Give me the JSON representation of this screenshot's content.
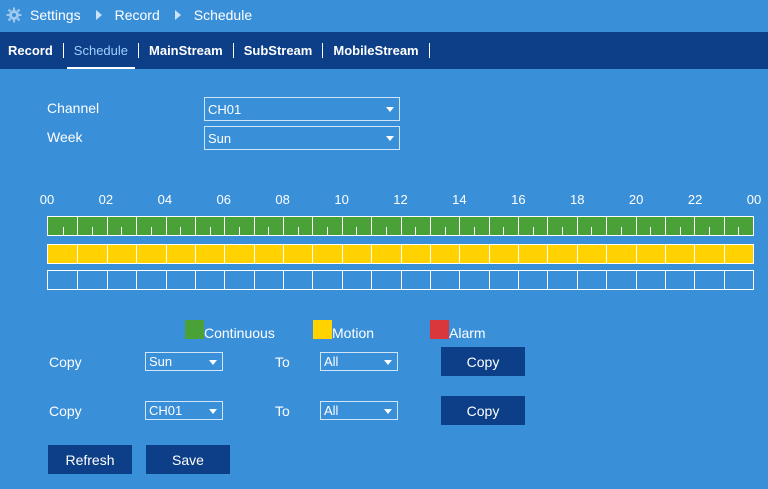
{
  "breadcrumb": {
    "items": [
      "Settings",
      "Record",
      "Schedule"
    ]
  },
  "tabs": [
    "Record",
    "Schedule",
    "MainStream",
    "SubStream",
    "MobileStream"
  ],
  "active_tab": "Schedule",
  "form": {
    "channel_label": "Channel",
    "channel_value": "CH01",
    "week_label": "Week",
    "week_value": "Sun"
  },
  "timeline": {
    "hour_labels": [
      "00",
      "02",
      "04",
      "06",
      "08",
      "10",
      "12",
      "14",
      "16",
      "18",
      "20",
      "22",
      "00"
    ],
    "continuous": "all hours scheduled",
    "motion": "all hours scheduled",
    "alarm": "none"
  },
  "legend": {
    "continuous": "Continuous",
    "motion": "Motion",
    "alarm": "Alarm"
  },
  "colors": {
    "background": "#3a8fd9",
    "tabbar": "#0c3f87",
    "continuous": "#4aa137",
    "motion": "#ffd200",
    "alarm": "#d9373c"
  },
  "copy1": {
    "label": "Copy",
    "from": "Sun",
    "to_label": "To",
    "to": "All",
    "button": "Copy"
  },
  "copy2": {
    "label": "Copy",
    "from": "CH01",
    "to_label": "To",
    "to": "All",
    "button": "Copy"
  },
  "buttons": {
    "refresh": "Refresh",
    "save": "Save"
  }
}
